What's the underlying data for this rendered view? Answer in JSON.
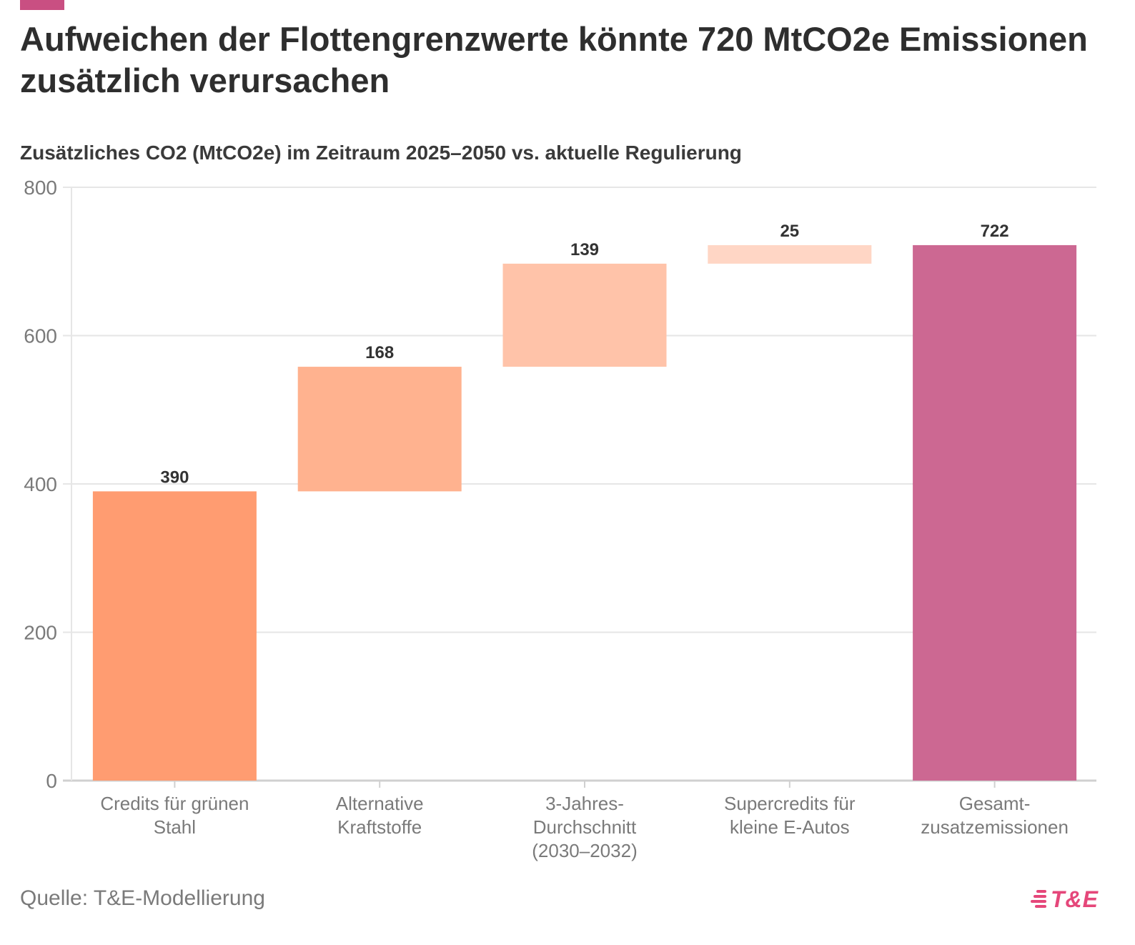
{
  "header": {
    "title": "Aufweichen der Flottengrenzwerte könnte 720 MtCO2e Emissionen zusätzlich verursachen",
    "subtitle": "Zusätzliches CO2 (MtCO2e) im Zeitraum 2025–2050 vs. aktuelle Regulierung"
  },
  "footer": {
    "source": "Quelle: T&E-Modellierung",
    "logo_text": "T&E"
  },
  "colors": {
    "accent": "#c94f82",
    "bar_1": "#ff9c71",
    "bar_2": "#ffb28f",
    "bar_3": "#ffc3a9",
    "bar_4": "#ffd6c5",
    "bar_total": "#cc6892",
    "grid": "#e6e6e6"
  },
  "chart_data": {
    "type": "waterfall",
    "title": "Aufweichen der Flottengrenzwerte könnte 720 MtCO2e Emissionen zusätzlich verursachen",
    "ylabel": "Zusätzliches CO2 (MtCO2e) im Zeitraum 2025–2050 vs. aktuelle Regulierung",
    "xlabel": "",
    "ylim": [
      0,
      800
    ],
    "yticks": [
      0,
      200,
      400,
      600,
      800
    ],
    "grid": true,
    "categories": [
      [
        "Credits für grünen",
        "Stahl"
      ],
      [
        "Alternative",
        "Kraftstoffe"
      ],
      [
        "3-Jahres-",
        "Durchschnitt",
        "(2030–2032)"
      ],
      [
        "Supercredits für",
        "kleine E-Autos"
      ],
      [
        "Gesamt-",
        "zusatzemissionen"
      ]
    ],
    "bars": [
      {
        "label": "390",
        "start": 0,
        "end": 390,
        "total": false
      },
      {
        "label": "168",
        "start": 390,
        "end": 558,
        "total": false
      },
      {
        "label": "139",
        "start": 558,
        "end": 697,
        "total": false
      },
      {
        "label": "25",
        "start": 697,
        "end": 722,
        "total": false
      },
      {
        "label": "722",
        "start": 0,
        "end": 722,
        "total": true
      }
    ]
  }
}
